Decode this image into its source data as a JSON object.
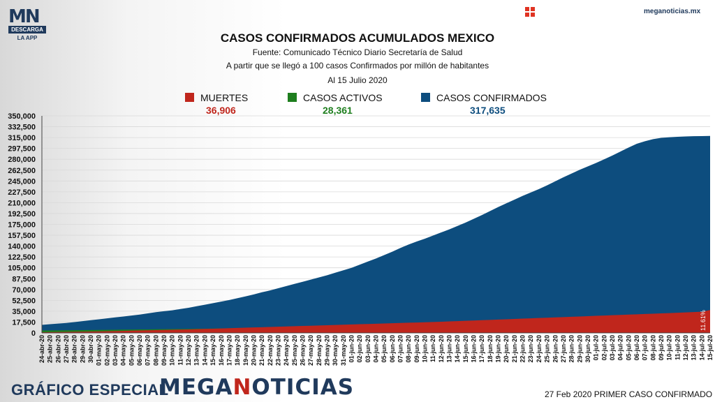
{
  "header": {
    "logo_text_1": "MN",
    "logo_badge": "DESCARGA",
    "logo_sub": "LA APP",
    "site": "meganoticias.mx"
  },
  "icons": {
    "top": "plus-cross-icon"
  },
  "colors": {
    "deaths": "#c0261c",
    "active": "#1e7e1e",
    "confirmed": "#0d4d7e",
    "brand": "#203a5c"
  },
  "legend": [
    {
      "label": "MUERTES",
      "value": "36,906",
      "color": "#c0261c"
    },
    {
      "label": "CASOS ACTIVOS",
      "value": "28,361",
      "color": "#1e7e1e"
    },
    {
      "label": "CASOS CONFIRMADOS",
      "value": "317,635",
      "color": "#0d4d7e"
    }
  ],
  "footer": {
    "left": "GRÁFICO ESPECIAL",
    "brand_a": "MEGA",
    "brand_b": "N",
    "brand_c": "OTICIAS",
    "right": "27 Feb 2020 PRIMER CASO CONFIRMADO"
  },
  "chart_data": {
    "type": "area",
    "title": "CASOS CONFIRMADOS ACUMULADOS MEXICO",
    "subtitle_1": "Fuente: Comunicado Técnico Diario Secretaría de Salud",
    "subtitle_2": "A partir que se llegó a 100 casos Confirmados por millón de habitantes",
    "subtitle_3": "Al 15 Julio 2020",
    "ylim": [
      0,
      350000
    ],
    "yticks": [
      0,
      17500,
      35000,
      52500,
      70000,
      87500,
      105000,
      122500,
      140000,
      157500,
      175000,
      192500,
      210000,
      227500,
      245000,
      262500,
      280000,
      297500,
      315000,
      332500,
      350000
    ],
    "ytick_labels": [
      "0",
      "17,500",
      "35,000",
      "52,500",
      "70,000",
      "87,500",
      "105,000",
      "122,500",
      "140,000",
      "157,500",
      "175,000",
      "192,500",
      "210,000",
      "227,500",
      "245,000",
      "262,500",
      "280,000",
      "297,500",
      "315,000",
      "332,500",
      "350,000"
    ],
    "categories": [
      "24-abr-20",
      "25-abr-20",
      "26-abr-20",
      "27-abr-20",
      "28-abr-20",
      "29-abr-20",
      "30-abr-20",
      "01-may-20",
      "02-may-20",
      "03-may-20",
      "04-may-20",
      "05-may-20",
      "06-may-20",
      "07-may-20",
      "08-may-20",
      "09-may-20",
      "10-may-20",
      "11-may-20",
      "12-may-20",
      "13-may-20",
      "14-may-20",
      "15-may-20",
      "16-may-20",
      "17-may-20",
      "18-may-20",
      "19-may-20",
      "20-may-20",
      "21-may-20",
      "22-may-20",
      "23-may-20",
      "24-may-20",
      "25-may-20",
      "26-may-20",
      "27-may-20",
      "28-may-20",
      "29-may-20",
      "30-may-20",
      "31-may-20",
      "01-jun-20",
      "02-jun-20",
      "03-jun-20",
      "04-jun-20",
      "05-jun-20",
      "06-jun-20",
      "07-jun-20",
      "08-jun-20",
      "09-jun-20",
      "10-jun-20",
      "11-jun-20",
      "12-jun-20",
      "13-jun-20",
      "14-jun-20",
      "15-jun-20",
      "16-jun-20",
      "17-jun-20",
      "18-jun-20",
      "19-jun-20",
      "20-jun-20",
      "21-jun-20",
      "22-jun-20",
      "23-jun-20",
      "24-jun-20",
      "25-jun-20",
      "26-jun-20",
      "27-jun-20",
      "28-jun-20",
      "29-jun-20",
      "30-jun-20",
      "01-jul-20",
      "02-jul-20",
      "03-jul-20",
      "04-jul-20",
      "05-jul-20",
      "06-jul-20",
      "07-jul-20",
      "08-jul-20",
      "09-jul-20",
      "10-jul-20",
      "11-jul-20",
      "12-jul-20",
      "13-jul-20",
      "14-jul-20",
      "15-jul-20"
    ],
    "series": [
      {
        "name": "CASOS CONFIRMADOS",
        "color": "#0d4d7e",
        "values": [
          13000,
          14000,
          15000,
          16000,
          17500,
          19000,
          20500,
          22000,
          23500,
          25000,
          26500,
          28000,
          29500,
          31500,
          33500,
          35000,
          36500,
          38500,
          40500,
          43000,
          45500,
          48000,
          50500,
          53000,
          56000,
          59000,
          62000,
          65500,
          68500,
          72000,
          75500,
          79000,
          82500,
          86000,
          89500,
          93000,
          97000,
          101000,
          105000,
          110000,
          115000,
          120000,
          125500,
          131000,
          137000,
          142500,
          147500,
          152000,
          157000,
          162000,
          167000,
          172500,
          178000,
          184000,
          190000,
          196500,
          203000,
          209000,
          215000,
          221000,
          226500,
          232000,
          238000,
          244500,
          251000,
          257000,
          263000,
          268500,
          274000,
          280000,
          286000,
          292500,
          299000,
          305000,
          309000,
          312500,
          314500,
          315500,
          316300,
          316800,
          317200,
          317400,
          317635
        ]
      },
      {
        "name": "CASOS ACTIVOS",
        "color": "#1e7e1e",
        "values": [
          4000,
          4000,
          4100,
          4200,
          4300,
          4500,
          4700,
          4800,
          4900,
          5100,
          5300,
          5400,
          5600,
          5700,
          5900,
          6000,
          6200,
          6300,
          6500,
          6700,
          6800,
          7000,
          7200,
          7400,
          7500,
          7700,
          7900,
          8100,
          8200,
          8400,
          8600,
          8700,
          8900,
          9100,
          9300,
          9400,
          9600,
          9800,
          10000,
          10200,
          10400,
          10600,
          10800,
          11000,
          11200,
          11400,
          11600,
          11800,
          12000,
          12200,
          12400,
          12600,
          12800,
          13000,
          13200,
          13400,
          13600,
          13800,
          14000,
          14200,
          14400,
          14700,
          15000,
          15300,
          15600,
          15900,
          16200,
          16500,
          16800,
          17200,
          17600,
          18000,
          18500,
          19000,
          19600,
          20300,
          21200,
          22300,
          23600,
          24900,
          26200,
          27300,
          28361
        ]
      },
      {
        "name": "MUERTES",
        "color": "#c0261c",
        "values": [
          1000,
          1200,
          1400,
          1600,
          1800,
          2000,
          2200,
          2400,
          2700,
          3000,
          3300,
          3600,
          3900,
          4200,
          4500,
          4800,
          5100,
          5400,
          5700,
          6000,
          6400,
          6800,
          7200,
          7600,
          8000,
          8400,
          8800,
          9200,
          9600,
          10000,
          10400,
          10800,
          11200,
          11600,
          12000,
          12400,
          12800,
          13200,
          13600,
          14000,
          14400,
          14800,
          15200,
          15600,
          16000,
          16400,
          16800,
          17200,
          17600,
          18000,
          18500,
          19000,
          19500,
          20000,
          20500,
          21000,
          21500,
          22000,
          22500,
          23000,
          23500,
          24000,
          24500,
          25000,
          25500,
          26000,
          26500,
          27000,
          27500,
          28000,
          28500,
          29000,
          29500,
          30000,
          30500,
          31000,
          31500,
          32000,
          32500,
          33000,
          33600,
          34200,
          36906
        ]
      }
    ],
    "annotation": "11.61%"
  }
}
